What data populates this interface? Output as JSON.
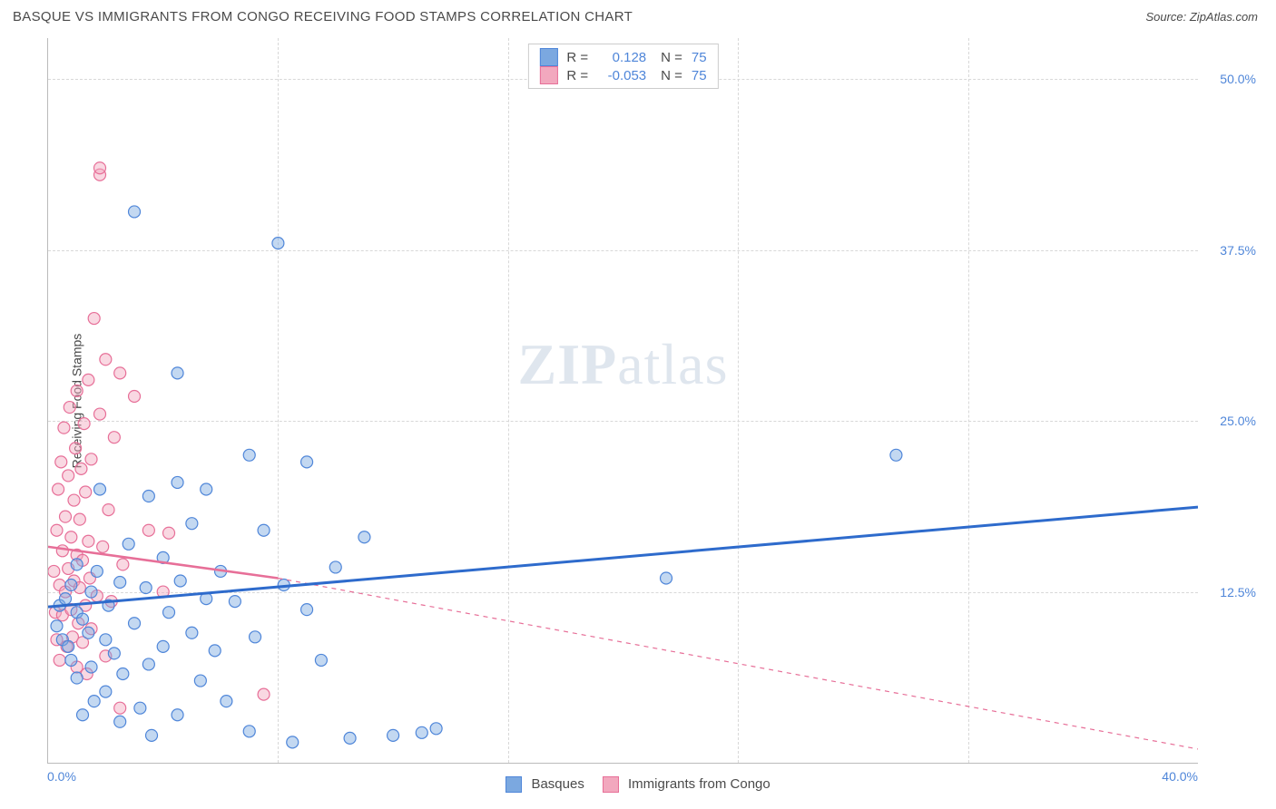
{
  "header": {
    "title": "BASQUE VS IMMIGRANTS FROM CONGO RECEIVING FOOD STAMPS CORRELATION CHART",
    "source": "Source: ZipAtlas.com"
  },
  "ylabel": "Receiving Food Stamps",
  "watermark": {
    "zip": "ZIP",
    "atlas": "atlas"
  },
  "chart": {
    "type": "scatter",
    "xlim": [
      0,
      40
    ],
    "ylim": [
      0,
      53
    ],
    "yticks": [
      {
        "v": 12.5,
        "label": "12.5%"
      },
      {
        "v": 25.0,
        "label": "25.0%"
      },
      {
        "v": 37.5,
        "label": "37.5%"
      },
      {
        "v": 50.0,
        "label": "50.0%"
      }
    ],
    "xtick_left": "0.0%",
    "xtick_right": "40.0%",
    "xgrid_ticks": [
      8,
      16,
      24,
      32
    ],
    "background_color": "#ffffff",
    "grid_color": "#d8d8d8",
    "series": {
      "blue": {
        "label": "Basques",
        "fill_color": "#7ba8e0",
        "stroke_color": "#4f86d9",
        "line_color": "#2e6bcc",
        "R": "0.128",
        "N": "75",
        "trend": {
          "x1": 0,
          "y1": 11.4,
          "x2": 40,
          "y2": 18.7
        },
        "points": [
          [
            0.3,
            10
          ],
          [
            0.4,
            11.5
          ],
          [
            0.5,
            9
          ],
          [
            0.6,
            12
          ],
          [
            0.7,
            8.5
          ],
          [
            0.8,
            13
          ],
          [
            0.8,
            7.5
          ],
          [
            1.0,
            11
          ],
          [
            1.0,
            6.2
          ],
          [
            1.0,
            14.5
          ],
          [
            1.2,
            3.5
          ],
          [
            1.2,
            10.5
          ],
          [
            1.4,
            9.5
          ],
          [
            1.5,
            7
          ],
          [
            1.5,
            12.5
          ],
          [
            1.6,
            4.5
          ],
          [
            1.7,
            14
          ],
          [
            1.8,
            20
          ],
          [
            2.0,
            9
          ],
          [
            2.0,
            5.2
          ],
          [
            2.1,
            11.5
          ],
          [
            2.3,
            8
          ],
          [
            2.5,
            13.2
          ],
          [
            2.5,
            3
          ],
          [
            2.6,
            6.5
          ],
          [
            2.8,
            16
          ],
          [
            3.0,
            10.2
          ],
          [
            3.0,
            40.3
          ],
          [
            3.2,
            4
          ],
          [
            3.4,
            12.8
          ],
          [
            3.5,
            19.5
          ],
          [
            3.5,
            7.2
          ],
          [
            3.6,
            2
          ],
          [
            4.0,
            8.5
          ],
          [
            4.0,
            15
          ],
          [
            4.2,
            11
          ],
          [
            4.5,
            20.5
          ],
          [
            4.5,
            3.5
          ],
          [
            4.5,
            28.5
          ],
          [
            4.6,
            13.3
          ],
          [
            5.0,
            9.5
          ],
          [
            5.0,
            17.5
          ],
          [
            5.3,
            6
          ],
          [
            5.5,
            12
          ],
          [
            5.5,
            20
          ],
          [
            5.8,
            8.2
          ],
          [
            6.0,
            14
          ],
          [
            6.2,
            4.5
          ],
          [
            6.5,
            11.8
          ],
          [
            7.0,
            22.5
          ],
          [
            7.0,
            2.3
          ],
          [
            7.2,
            9.2
          ],
          [
            7.5,
            17
          ],
          [
            8.0,
            38
          ],
          [
            8.2,
            13
          ],
          [
            8.5,
            1.5
          ],
          [
            9.0,
            11.2
          ],
          [
            9.0,
            22
          ],
          [
            9.5,
            7.5
          ],
          [
            10.0,
            14.3
          ],
          [
            10.5,
            1.8
          ],
          [
            11.0,
            16.5
          ],
          [
            12.0,
            2
          ],
          [
            13.0,
            2.2
          ],
          [
            13.5,
            2.5
          ],
          [
            21.5,
            13.5
          ],
          [
            29.5,
            22.5
          ]
        ]
      },
      "pink": {
        "label": "Immigrants from Congo",
        "fill_color": "#f2a8be",
        "stroke_color": "#e76f98",
        "line_color": "#e76f98",
        "R": "-0.053",
        "N": "75",
        "trend_solid": {
          "x1": 0,
          "y1": 15.8,
          "x2": 8,
          "y2": 13.5
        },
        "trend_dash": {
          "x1": 8,
          "y1": 13.5,
          "x2": 40,
          "y2": 1.0
        },
        "points": [
          [
            0.2,
            14
          ],
          [
            0.25,
            11
          ],
          [
            0.3,
            17
          ],
          [
            0.3,
            9
          ],
          [
            0.35,
            20
          ],
          [
            0.4,
            13
          ],
          [
            0.4,
            7.5
          ],
          [
            0.45,
            22
          ],
          [
            0.5,
            15.5
          ],
          [
            0.5,
            10.8
          ],
          [
            0.55,
            24.5
          ],
          [
            0.6,
            12.5
          ],
          [
            0.6,
            18
          ],
          [
            0.65,
            8.5
          ],
          [
            0.7,
            21
          ],
          [
            0.7,
            14.2
          ],
          [
            0.75,
            26
          ],
          [
            0.8,
            11.2
          ],
          [
            0.8,
            16.5
          ],
          [
            0.85,
            9.2
          ],
          [
            0.9,
            19.2
          ],
          [
            0.9,
            13.3
          ],
          [
            0.95,
            23
          ],
          [
            1.0,
            7
          ],
          [
            1.0,
            15.2
          ],
          [
            1.0,
            27.2
          ],
          [
            1.05,
            10.2
          ],
          [
            1.1,
            17.8
          ],
          [
            1.1,
            12.8
          ],
          [
            1.15,
            21.5
          ],
          [
            1.2,
            8.8
          ],
          [
            1.2,
            14.8
          ],
          [
            1.25,
            24.8
          ],
          [
            1.3,
            11.5
          ],
          [
            1.3,
            19.8
          ],
          [
            1.35,
            6.5
          ],
          [
            1.4,
            16.2
          ],
          [
            1.4,
            28
          ],
          [
            1.45,
            13.5
          ],
          [
            1.5,
            9.8
          ],
          [
            1.5,
            22.2
          ],
          [
            1.6,
            32.5
          ],
          [
            1.7,
            12.2
          ],
          [
            1.8,
            25.5
          ],
          [
            1.8,
            43
          ],
          [
            1.8,
            43.5
          ],
          [
            1.9,
            15.8
          ],
          [
            2.0,
            29.5
          ],
          [
            2.0,
            7.8
          ],
          [
            2.1,
            18.5
          ],
          [
            2.2,
            11.8
          ],
          [
            2.3,
            23.8
          ],
          [
            2.5,
            4
          ],
          [
            2.5,
            28.5
          ],
          [
            2.6,
            14.5
          ],
          [
            3.0,
            26.8
          ],
          [
            3.5,
            17
          ],
          [
            4.0,
            12.5
          ],
          [
            4.2,
            16.8
          ],
          [
            7.5,
            5
          ]
        ]
      }
    },
    "marker_radius": 6.5
  },
  "top_legend": {
    "R_label": "R =",
    "N_label": "N ="
  },
  "bottom_legend_items": [
    {
      "series": "blue"
    },
    {
      "series": "pink"
    }
  ]
}
